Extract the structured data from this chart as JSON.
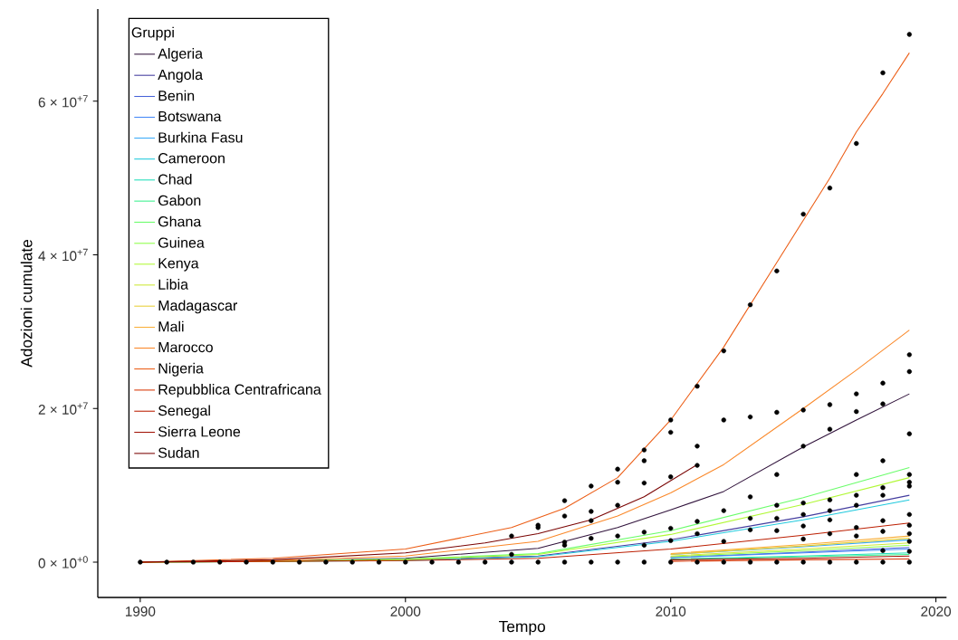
{
  "chart_data": {
    "type": "line",
    "xlabel": "Tempo",
    "ylabel": "Adozioni cumulate",
    "legend_title": "Gruppi",
    "legend": "top left",
    "marker": "none",
    "line_style": "solid",
    "xlim": [
      1988.4,
      2020.4
    ],
    "ylim": [
      -4600000,
      72000000
    ],
    "xticks": [
      1990,
      2000,
      2010,
      2020
    ],
    "yticks": [
      {
        "value": 0,
        "label": "0 × 10$^{+0}$"
      },
      {
        "value": 20000000,
        "label": "2 × 10$^{+7}$"
      },
      {
        "value": 40000000,
        "label": "4 × 10$^{+7}$"
      },
      {
        "value": 60000000,
        "label": "6 × 10$^{+7}$"
      }
    ],
    "series": [
      {
        "name": "Algeria",
        "color": "#30123b",
        "x": [
          1990,
          1995,
          2000,
          2005,
          2008,
          2010,
          2012,
          2015,
          2017,
          2019
        ],
        "values": [
          0,
          100000.0,
          500000.0,
          1800000.0,
          4500000.0,
          6800000.0,
          9200000.0,
          15000000.0,
          18500000.0,
          21900000.0
        ]
      },
      {
        "name": "Angola",
        "color": "#433d9f",
        "x": [
          2000,
          2005,
          2010,
          2015,
          2019
        ],
        "values": [
          300000.0,
          800000.0,
          2900000.0,
          5900000.0,
          8700000.0
        ]
      },
      {
        "name": "Benin",
        "color": "#4662d8",
        "x": [
          2010,
          2015,
          2019
        ],
        "values": [
          600000.0,
          1300000.0,
          1900000.0
        ]
      },
      {
        "name": "Botswana",
        "color": "#4488f7",
        "x": [
          2010,
          2015,
          2019
        ],
        "values": [
          600000.0,
          1200000.0,
          1700000.0
        ]
      },
      {
        "name": "Burkina Fasu",
        "color": "#36aaf9",
        "x": [
          2010,
          2015,
          2019
        ],
        "values": [
          1000000.0,
          2000000.0,
          2900000.0
        ]
      },
      {
        "name": "Cameroon",
        "color": "#1fc9dd",
        "x": [
          1990,
          1995,
          2000,
          2005,
          2010,
          2015,
          2019
        ],
        "values": [
          0,
          100000.0,
          200000.0,
          700000.0,
          2700000.0,
          5500000.0,
          8100000.0
        ]
      },
      {
        "name": "Chad",
        "color": "#1fdeba",
        "x": [
          2010,
          2015,
          2019
        ],
        "values": [
          400000.0,
          800000.0,
          1200000.0
        ]
      },
      {
        "name": "Gabon",
        "color": "#3af18e",
        "x": [
          2010,
          2015,
          2019
        ],
        "values": [
          300000.0,
          700000.0,
          1000000.0
        ]
      },
      {
        "name": "Ghana",
        "color": "#6afd6a",
        "x": [
          1990,
          1995,
          2000,
          2005,
          2010,
          2015,
          2019
        ],
        "values": [
          0,
          100000.0,
          400000.0,
          1100000.0,
          4100000.0,
          8400000.0,
          12300000.0
        ]
      },
      {
        "name": "Guinea",
        "color": "#8eff49",
        "x": [
          2010,
          2015,
          2019
        ],
        "values": [
          700000.0,
          1500000.0,
          2200000.0
        ]
      },
      {
        "name": "Kenya",
        "color": "#b1f836",
        "x": [
          1990,
          1995,
          2000,
          2005,
          2010,
          2015,
          2019
        ],
        "values": [
          0,
          100000.0,
          300000.0,
          1000000.0,
          3600000.0,
          7500000.0,
          11000000.0
        ]
      },
      {
        "name": "Libia",
        "color": "#cce836",
        "x": [
          2010,
          2015,
          2019
        ],
        "values": [
          800000.0,
          1700000.0,
          2500000.0
        ]
      },
      {
        "name": "Madagascar",
        "color": "#e7cf37",
        "x": [
          2010,
          2015,
          2019
        ],
        "values": [
          1000000.0,
          2100000.0,
          3100000.0
        ]
      },
      {
        "name": "Mali",
        "color": "#f9ae38",
        "x": [
          2010,
          2015,
          2019
        ],
        "values": [
          1100000.0,
          2300000.0,
          3400000.0
        ]
      },
      {
        "name": "Marocco",
        "color": "#fa8829",
        "x": [
          1990,
          1995,
          2000,
          2005,
          2008,
          2010,
          2012,
          2015,
          2017,
          2019
        ],
        "values": [
          0,
          200000.0,
          800000.0,
          2700000.0,
          6000000.0,
          9000000.0,
          12700000.0,
          20000000.0,
          25000000.0,
          30200000.0
        ]
      },
      {
        "name": "Nigeria",
        "color": "#ec5d15",
        "x": [
          1990,
          1995,
          2000,
          2004,
          2006,
          2008,
          2010,
          2012,
          2014,
          2016,
          2017,
          2018,
          2019
        ],
        "values": [
          0,
          500000.0,
          1700000.0,
          4500000.0,
          7000000.0,
          11000000.0,
          18500000.0,
          28000000.0,
          39000000.0,
          50000000.0,
          56000000.0,
          61000000.0,
          66300000.0
        ]
      },
      {
        "name": "Repubblica Centrafricana",
        "color": "#d93806",
        "x": [
          2010,
          2015,
          2019
        ],
        "values": [
          100000.0,
          300000.0,
          400000.0
        ]
      },
      {
        "name": "Senegal",
        "color": "#bc1f02",
        "x": [
          1990,
          1995,
          2000,
          2005,
          2010,
          2015,
          2019
        ],
        "values": [
          0,
          100000.0,
          200000.0,
          500000.0,
          1700000.0,
          3500000.0,
          5100000.0
        ]
      },
      {
        "name": "Sierra Leone",
        "color": "#a10f02",
        "x": [
          2010,
          2015,
          2019
        ],
        "values": [
          300000.0,
          500000.0,
          800000.0
        ]
      },
      {
        "name": "Sudan",
        "color": "#7a0403",
        "x": [
          1990,
          1995,
          2000,
          2003,
          2005,
          2007,
          2009,
          2011
        ],
        "values": [
          0,
          300000.0,
          1200000.0,
          2500000.0,
          3700000.0,
          5500000.0,
          8500000.0,
          12700000.0
        ]
      },
      {
        "type": "scatter",
        "color": "#000000",
        "x": [
          1990,
          1991,
          1992,
          1993,
          1994,
          1995,
          1996,
          1997,
          1998,
          1999,
          2000,
          2001,
          2002,
          2003,
          2004,
          2005,
          2006,
          2007,
          2008,
          2009,
          2010,
          2011,
          2012,
          2013,
          2014,
          2015,
          2016,
          2017,
          2018,
          2019,
          2004,
          2004,
          2005,
          2005,
          2006,
          2006,
          2006,
          2006,
          2007,
          2007,
          2007,
          2007,
          2008,
          2008,
          2008,
          2008,
          2009,
          2009,
          2009,
          2009,
          2009,
          2010,
          2010,
          2010,
          2010,
          2010,
          2011,
          2011,
          2011,
          2011,
          2011,
          2012,
          2012,
          2012,
          2012,
          2013,
          2013,
          2013,
          2013,
          2013,
          2014,
          2014,
          2014,
          2014,
          2014,
          2014,
          2015,
          2015,
          2015,
          2015,
          2015,
          2015,
          2015,
          2016,
          2016,
          2016,
          2016,
          2016,
          2016,
          2016,
          2017,
          2017,
          2017,
          2017,
          2017,
          2017,
          2017,
          2017,
          2018,
          2018,
          2018,
          2018,
          2018,
          2018,
          2018,
          2018,
          2018,
          2019,
          2019,
          2019,
          2019,
          2019,
          2019,
          2019,
          2019,
          2019,
          2019,
          2019,
          2019
        ],
        "values": [
          0,
          0,
          0,
          0,
          0,
          0,
          0,
          0,
          0,
          0,
          0,
          0,
          0,
          0,
          0,
          0,
          0,
          0,
          0,
          0,
          0,
          0,
          0,
          0,
          0,
          0,
          0,
          0,
          0,
          0,
          3400000.0,
          1000000.0,
          4800000.0,
          4500000.0,
          8000000.0,
          6000000.0,
          2600000.0,
          2200000.0,
          9900000.0,
          6600000.0,
          5400000.0,
          3100000.0,
          12100000.0,
          10400000.0,
          7400000.0,
          3400000.0,
          14600000.0,
          13200000.0,
          10300000.0,
          3900000.0,
          2200000.0,
          18500000.0,
          16900000.0,
          11100000.0,
          4400000.0,
          2800000.0,
          22900000.0,
          15100000.0,
          12600000.0,
          5300000.0,
          3700000.0,
          27500000.0,
          18500000.0,
          6700000.0,
          2700000.0,
          33500000.0,
          18900000.0,
          8500000.0,
          5700000.0,
          4200000.0,
          37900000.0,
          19500000.0,
          11400000.0,
          7400000.0,
          5700000.0,
          4100000.0,
          45300000.0,
          19800000.0,
          15100000.0,
          7700000.0,
          6200000.0,
          4700000.0,
          3000000.0,
          48700000.0,
          20500000.0,
          17300000.0,
          8100000.0,
          6700000.0,
          5500000.0,
          3700000.0,
          54500000.0,
          21900000.0,
          19600000.0,
          11400000.0,
          8700000.0,
          7400000.0,
          4500000.0,
          3400000.0,
          63700000.0,
          23300000.0,
          20600000.0,
          13200000.0,
          9700000.0,
          8700000.0,
          5400000.0,
          4000000.0,
          1500000.0,
          68700000.0,
          27000000.0,
          24800000.0,
          16700000.0,
          11400000.0,
          10400000.0,
          9900000.0,
          6200000.0,
          4800000.0,
          3700000.0,
          2700000.0,
          1400000.0
        ]
      }
    ]
  }
}
